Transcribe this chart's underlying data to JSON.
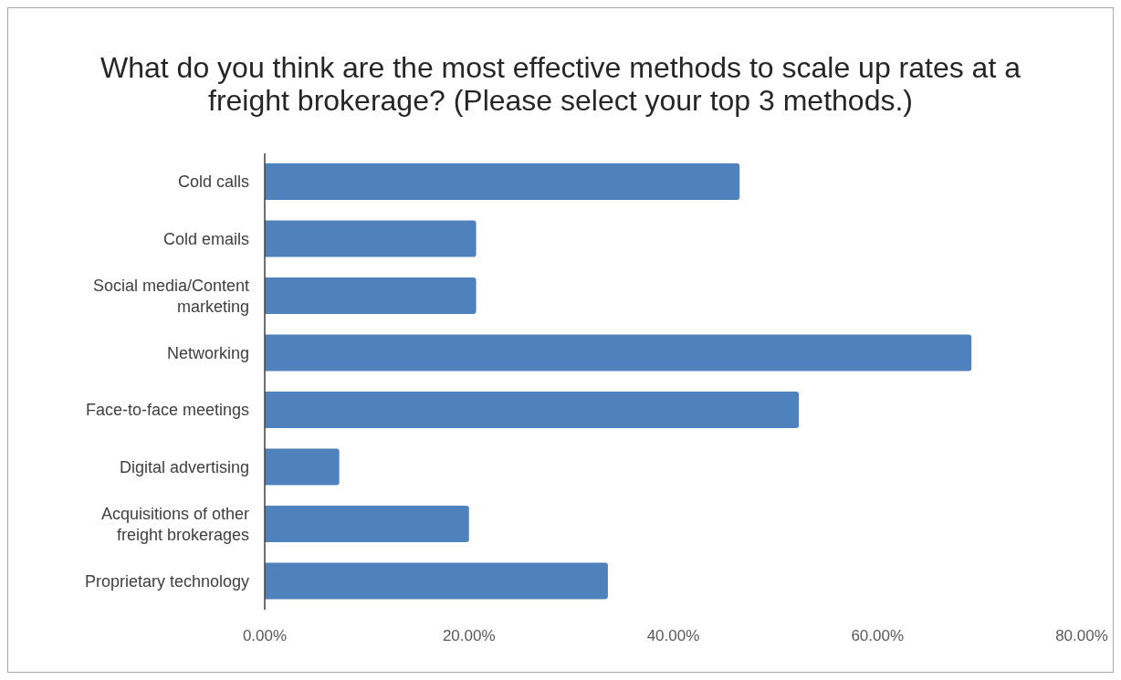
{
  "chart_data": {
    "type": "bar",
    "orientation": "horizontal",
    "title": "What do you think are the most effective methods to scale up rates at a freight brokerage? (Please select your top 3 methods.)",
    "categories": [
      "Cold calls",
      "Cold emails",
      "Social media/Content marketing",
      "Networking",
      "Face-to-face meetings",
      "Digital advertising",
      "Acquisitions of other freight brokerages",
      "Proprietary technology"
    ],
    "values": [
      46.5,
      20.7,
      20.7,
      69.2,
      52.3,
      7.3,
      20.0,
      33.6
    ],
    "color": "#4f81bd",
    "xlim": [
      0,
      80
    ],
    "xticks": [
      {
        "value": 0,
        "label": "0.00%"
      },
      {
        "value": 20,
        "label": "20.00%"
      },
      {
        "value": 40,
        "label": "40.00%"
      },
      {
        "value": 60,
        "label": "60.00%"
      },
      {
        "value": 80,
        "label": "80.00%"
      }
    ]
  }
}
